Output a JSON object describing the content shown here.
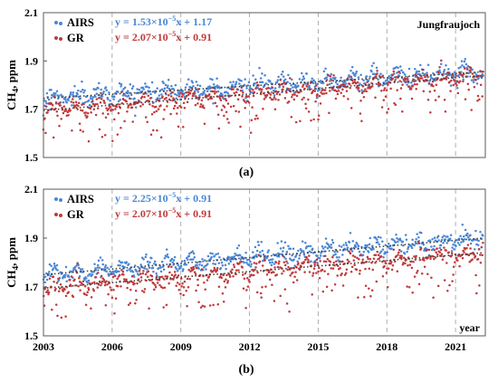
{
  "colors": {
    "airs": "#4a86d4",
    "gr": "#c0393b",
    "frame": "#595959",
    "vgrid": "#a6a6a6",
    "trend": "#404040"
  },
  "chart_data": [
    {
      "type": "scatter",
      "panel_label": "(a)",
      "site": "Jungfraujoch",
      "ylabel_main": "CH",
      "ylabel_sub": "4",
      "ylabel_unit": ", ppm",
      "ylim": [
        1.5,
        2.1
      ],
      "yticks": [
        "1.5",
        "1.7",
        "1.9",
        "2.1"
      ],
      "xlim": [
        2003,
        2022.3
      ],
      "xticks": [],
      "xlabel": "",
      "vlines": [
        2006,
        2009,
        2012,
        2015,
        2018,
        2021
      ],
      "grid": "vertical dashed lines",
      "legend_position": "top-left",
      "series": [
        {
          "name": "AIRS",
          "color_key": "airs",
          "x_range": [
            2003.0,
            2022.2
          ],
          "trend_start": 1.745,
          "trend_end": 1.855,
          "jitter": 0.035,
          "dips": false,
          "equation": {
            "prefix": "y = 1.53×10",
            "exp": "−5",
            "suffix": "x + 1.17"
          }
        },
        {
          "name": "GR",
          "color_key": "gr",
          "x_range": [
            2003.0,
            2022.2
          ],
          "trend_start": 1.695,
          "trend_end": 1.84,
          "jitter": 0.035,
          "dips": true,
          "equation": {
            "prefix": "y = 2.07×10",
            "exp": "−5",
            "suffix": "x + 0.91"
          }
        }
      ]
    },
    {
      "type": "scatter",
      "panel_label": "(b)",
      "site": "",
      "ylabel_main": "CH",
      "ylabel_sub": "4",
      "ylabel_unit": ", ppm",
      "ylim": [
        1.5,
        2.1
      ],
      "yticks": [
        "1.5",
        "1.7",
        "1.9",
        "2.1"
      ],
      "xlim": [
        2003,
        2022.3
      ],
      "xticks": [
        "2003",
        "2006",
        "2009",
        "2012",
        "2015",
        "2018",
        "2021"
      ],
      "xlabel": "year",
      "vlines": [
        2006,
        2009,
        2012,
        2015,
        2018,
        2021
      ],
      "grid": "vertical dashed lines",
      "legend_position": "top-left",
      "series": [
        {
          "name": "AIRS",
          "color_key": "airs",
          "x_range": [
            2003.0,
            2022.2
          ],
          "trend_start": 1.75,
          "trend_end": 1.9,
          "jitter": 0.035,
          "dips": false,
          "equation": {
            "prefix": "y = 2.25×10",
            "exp": "−5",
            "suffix": "x + 0.91"
          }
        },
        {
          "name": "GR",
          "color_key": "gr",
          "x_range": [
            2003.0,
            2022.2
          ],
          "trend_start": 1.695,
          "trend_end": 1.84,
          "jitter": 0.035,
          "dips": true,
          "equation": {
            "prefix": "y = 2.07×10",
            "exp": "−5",
            "suffix": "x + 0.91"
          }
        }
      ]
    }
  ]
}
